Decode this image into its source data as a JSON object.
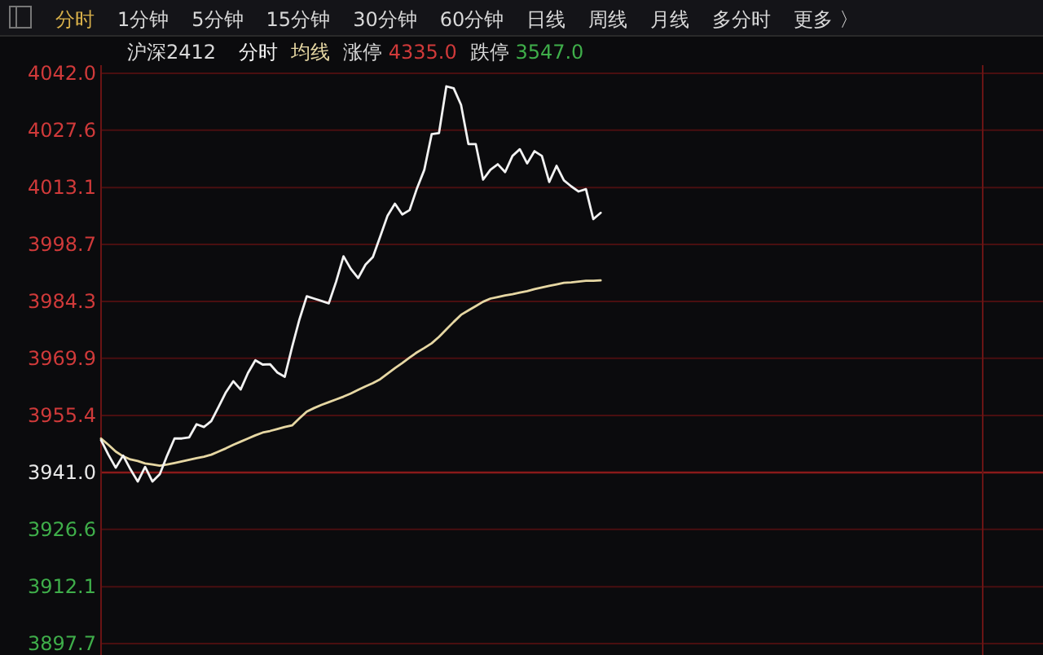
{
  "chart_data": {
    "type": "line",
    "title": "沪深2412",
    "categories": [
      null,
      null,
      null,
      null,
      null,
      null,
      null,
      null,
      null,
      null,
      null,
      null,
      null,
      null,
      null,
      null,
      null,
      null,
      null,
      null,
      null,
      null,
      null,
      null,
      null,
      null,
      null,
      null,
      null,
      null,
      null,
      null,
      null,
      null,
      null,
      null,
      null,
      null,
      null,
      null,
      null,
      null,
      null,
      null,
      null,
      null,
      null,
      null,
      null,
      null,
      null,
      null,
      null,
      null,
      null,
      null,
      null,
      null,
      null,
      null,
      null,
      null,
      null,
      null,
      null,
      null,
      null,
      null,
      null,
      null,
      null,
      null,
      null,
      null,
      null,
      null,
      null,
      null,
      null,
      null,
      null,
      null,
      null,
      null,
      null,
      null,
      null,
      null,
      null,
      null,
      null,
      null,
      null,
      null,
      null,
      null,
      null,
      null,
      null,
      null,
      null,
      null,
      null,
      null,
      null,
      null,
      null,
      null,
      null,
      null,
      null,
      null,
      null,
      null,
      null,
      null,
      null,
      null,
      null,
      null,
      null
    ],
    "series": [
      {
        "name": "分时",
        "color": "#f2f2f2",
        "values": [
          3949.2,
          3945.5,
          3942.2,
          3945.3,
          3941.8,
          3938.7,
          3942.4,
          3938.7,
          3940.6,
          3945.3,
          3949.6,
          3949.6,
          3949.9,
          3953.2,
          3952.5,
          3954.0,
          3957.6,
          3961.3,
          3964.1,
          3962.0,
          3966.2,
          3969.4,
          3968.3,
          3968.4,
          3966.3,
          3965.2,
          3972.7,
          3979.7,
          3985.6,
          3985.0,
          3984.4,
          3983.8,
          3989.3,
          3995.7,
          3992.5,
          3990.2,
          3993.6,
          3995.5,
          4000.7,
          4006.0,
          4009.0,
          4006.3,
          4007.4,
          4012.9,
          4017.6,
          4026.6,
          4026.9,
          4038.7,
          4038.2,
          4034.0,
          4024.1,
          4024.1,
          4015.1,
          4017.6,
          4019.0,
          4017.0,
          4021.1,
          4022.8,
          4019.2,
          4022.3,
          4021.1,
          4014.5,
          4018.6,
          4014.9,
          4013.4,
          4012.1,
          4012.7,
          4005.1,
          4006.7,
          null,
          null,
          null,
          null,
          null,
          null,
          null,
          null,
          null,
          null,
          null,
          null,
          null,
          null,
          null,
          null,
          null,
          null,
          null,
          null,
          null,
          null,
          null,
          null,
          null,
          null,
          null,
          null,
          null,
          null,
          null,
          null,
          null,
          null,
          null,
          null,
          null,
          null,
          null,
          null,
          null,
          null,
          null,
          null,
          null,
          null,
          null,
          null,
          null,
          null,
          null,
          null
        ]
      },
      {
        "name": "均线",
        "color": "#e6d7a3",
        "values": [
          3949.6,
          3948.0,
          3946.3,
          3945.1,
          3944.3,
          3943.9,
          3943.3,
          3943.0,
          3942.7,
          3943.0,
          3943.4,
          3943.8,
          3944.2,
          3944.6,
          3945.0,
          3945.5,
          3946.3,
          3947.1,
          3948.0,
          3948.8,
          3949.6,
          3950.4,
          3951.1,
          3951.5,
          3952.0,
          3952.5,
          3952.9,
          3954.7,
          3956.4,
          3957.3,
          3958.1,
          3958.8,
          3959.5,
          3960.2,
          3961.0,
          3961.9,
          3962.8,
          3963.6,
          3964.6,
          3966.0,
          3967.4,
          3968.7,
          3970.1,
          3971.4,
          3972.5,
          3973.7,
          3975.3,
          3977.2,
          3979.1,
          3980.9,
          3982.0,
          3983.1,
          3984.2,
          3985.0,
          3985.4,
          3985.8,
          3986.1,
          3986.5,
          3986.9,
          3987.4,
          3987.8,
          3988.2,
          3988.6,
          3989.0,
          3989.1,
          3989.3,
          3989.5,
          3989.5,
          3989.6,
          null,
          null,
          null,
          null,
          null,
          null,
          null,
          null,
          null,
          null,
          null,
          null,
          null,
          null,
          null,
          null,
          null,
          null,
          null,
          null,
          null,
          null,
          null,
          null,
          null,
          null,
          null,
          null,
          null,
          null,
          null,
          null,
          null,
          null,
          null,
          null,
          null,
          null,
          null,
          null,
          null,
          null,
          null,
          null,
          null,
          null,
          null,
          null,
          null,
          null,
          null,
          null
        ]
      }
    ],
    "ylim": [
      3897.7,
      4042.0
    ],
    "yticks": [
      {
        "value": 4042,
        "label": "4042.0"
      },
      4027.6,
      4013.1,
      3998.7,
      3984.3,
      3969.9,
      3955.4,
      {
        "value": 3941,
        "label": "3941.0"
      },
      3926.6,
      3912.1,
      3897.7
    ],
    "ref_lines": [
      {
        "axis": "y",
        "value": 3941.0,
        "color": "#8a1a1a"
      }
    ],
    "grid": "y",
    "legend": "top left",
    "tick_labels": "y",
    "annotations": [
      "分时",
      "1分钟",
      "5分钟",
      "15分钟",
      "30分钟",
      "60分钟",
      "日线",
      "周线",
      "月线",
      "多分时",
      "更多 〉",
      "涨停 4335.0",
      "跌停 3547.0"
    ]
  }
}
